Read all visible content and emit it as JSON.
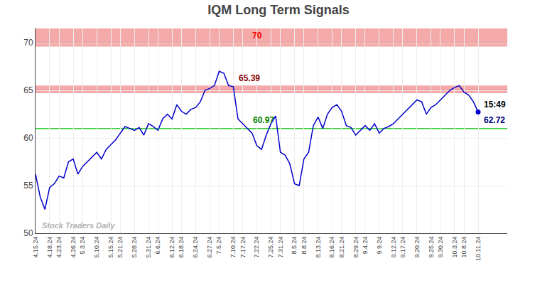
{
  "chart_data": {
    "type": "line",
    "title": "IQM Long Term Signals",
    "watermark": "Stock Traders Daily",
    "color": "#0000cc",
    "categories": [
      "4.15.24",
      null,
      null,
      "4.18.24",
      null,
      "4.23.24",
      null,
      null,
      "4.26.24",
      null,
      "5.3.24",
      null,
      null,
      "5.10.24",
      null,
      null,
      "5.15.24",
      null,
      "5.21.24",
      null,
      null,
      "5.28.24",
      null,
      null,
      "5.31.24",
      null,
      "6.6.24",
      null,
      null,
      "6.12.24",
      null,
      "6.18.24",
      null,
      null,
      "6.24.24",
      null,
      null,
      "6.27.24",
      null,
      "7.5.24",
      null,
      null,
      "7.10.24",
      null,
      "7.17.24",
      null,
      null,
      "7.22.24",
      null,
      null,
      "7.25.24",
      null,
      "7.31.24",
      null,
      null,
      "8.5.24",
      null,
      "8.8.24",
      null,
      null,
      "8.13.24",
      null,
      null,
      "8.16.24",
      null,
      "8.21.24",
      null,
      null,
      "8.29.24",
      null,
      "9.4.24",
      null,
      null,
      "9.9.24",
      null,
      null,
      "9.12.24",
      null,
      "9.17.24",
      null,
      null,
      "9.20.24",
      null,
      null,
      "9.25.24",
      null,
      "9.30.24",
      null,
      null,
      "10.3.24",
      null,
      "10.8.24",
      null,
      null,
      "10.11.24"
    ],
    "values": [
      56.2,
      53.8,
      52.5,
      54.8,
      55.2,
      56.0,
      55.8,
      57.5,
      57.8,
      56.2,
      57.0,
      57.5,
      58.0,
      58.5,
      57.8,
      58.8,
      59.3,
      59.8,
      60.5,
      61.2,
      61.0,
      60.8,
      61.1,
      60.3,
      61.5,
      61.2,
      60.8,
      62.0,
      62.5,
      62.0,
      63.5,
      62.8,
      62.5,
      63.0,
      63.2,
      63.8,
      65.0,
      65.2,
      65.5,
      67.0,
      66.8,
      65.5,
      65.39,
      62.0,
      61.5,
      60.97,
      60.5,
      59.2,
      58.8,
      60.3,
      61.5,
      62.3,
      58.5,
      58.2,
      57.3,
      55.2,
      55.0,
      57.8,
      58.5,
      61.3,
      62.2,
      61.0,
      62.5,
      63.2,
      63.5,
      62.8,
      61.3,
      61.1,
      60.3,
      60.8,
      61.3,
      60.8,
      61.5,
      60.5,
      61.0,
      61.2,
      61.5,
      62.0,
      62.5,
      63.0,
      63.5,
      64.0,
      63.8,
      62.5,
      63.2,
      63.5,
      64.0,
      64.5,
      65.0,
      65.3,
      65.5,
      64.8,
      64.5,
      63.8,
      62.72
    ],
    "ylim": [
      50,
      71.5
    ],
    "yticks": [
      50,
      55,
      60,
      65,
      70
    ],
    "grid": true,
    "bands": [
      {
        "from": 69.6,
        "to": 71.5,
        "color": "#f5aaaa"
      },
      {
        "from": 64.7,
        "to": 65.5,
        "color": "#f5aaaa"
      }
    ],
    "hlines": [
      {
        "value": 70,
        "color": "#e08080"
      },
      {
        "value": 65,
        "color": "#e08080"
      },
      {
        "value": 61,
        "color": "#33cc33"
      }
    ],
    "annotations": [
      {
        "text": "70",
        "color": "red",
        "y": 70
      },
      {
        "text": "65.39",
        "color": "#8b0000",
        "y": 65.39
      },
      {
        "text": "60.97",
        "color": "green",
        "y": 60.97
      },
      {
        "text": "15:49",
        "color": "black"
      },
      {
        "text": "62.72",
        "color": "navy",
        "y": 62.72
      }
    ]
  }
}
